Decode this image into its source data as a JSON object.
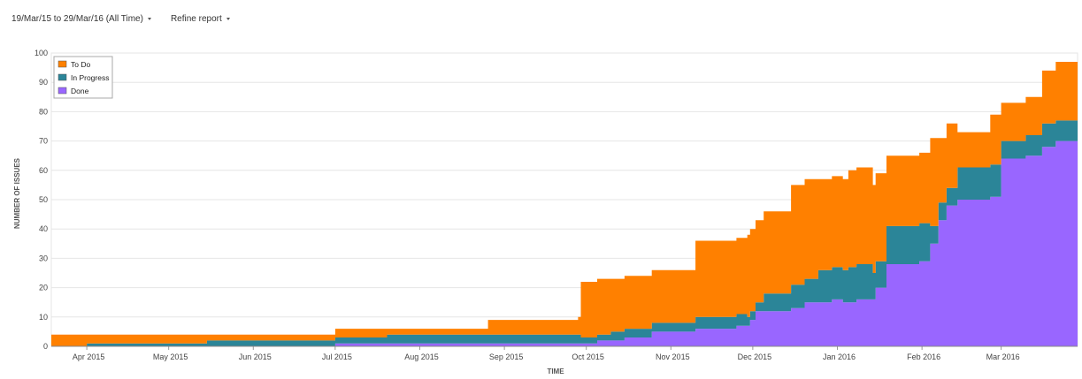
{
  "toolbar": {
    "date_range_label": "19/Mar/15 to 29/Mar/16 (All Time)",
    "refine_label": "Refine report"
  },
  "chart_data": {
    "type": "area",
    "stacked": true,
    "xlabel": "TIME",
    "ylabel": "NUMBER OF ISSUES",
    "x_ticks": [
      "Apr 2015",
      "May 2015",
      "Jun 2015",
      "Jul 2015",
      "Aug 2015",
      "Sep 2015",
      "Oct 2015",
      "Nov 2015",
      "Dec 2015",
      "Jan 2016",
      "Feb 2016",
      "Mar 2016"
    ],
    "y_ticks": [
      0,
      10,
      20,
      30,
      40,
      50,
      60,
      70,
      80,
      90,
      100
    ],
    "xlim": [
      "2015-03-19",
      "2016-03-29"
    ],
    "ylim": [
      0,
      100
    ],
    "grid": "horizontal",
    "legend_position": "top-left",
    "series": [
      {
        "name": "Done",
        "color": "#9966ff",
        "points": [
          [
            "2015-03-19",
            0
          ],
          [
            "2015-07-01",
            1
          ],
          [
            "2015-09-29",
            1
          ],
          [
            "2015-10-05",
            2
          ],
          [
            "2015-10-15",
            3
          ],
          [
            "2015-10-25",
            5
          ],
          [
            "2015-11-10",
            6
          ],
          [
            "2015-11-25",
            7
          ],
          [
            "2015-11-30",
            9
          ],
          [
            "2015-12-02",
            12
          ],
          [
            "2015-12-15",
            13
          ],
          [
            "2015-12-20",
            15
          ],
          [
            "2015-12-30",
            16
          ],
          [
            "2016-01-03",
            15
          ],
          [
            "2016-01-08",
            16
          ],
          [
            "2016-01-15",
            20
          ],
          [
            "2016-01-19",
            28
          ],
          [
            "2016-01-31",
            29
          ],
          [
            "2016-02-04",
            35
          ],
          [
            "2016-02-07",
            43
          ],
          [
            "2016-02-10",
            48
          ],
          [
            "2016-02-14",
            50
          ],
          [
            "2016-02-26",
            51
          ],
          [
            "2016-03-01",
            64
          ],
          [
            "2016-03-10",
            65
          ],
          [
            "2016-03-16",
            68
          ],
          [
            "2016-03-21",
            70
          ],
          [
            "2016-03-29",
            70
          ]
        ]
      },
      {
        "name": "In Progress",
        "color": "#2b8598",
        "points": [
          [
            "2015-03-19",
            0
          ],
          [
            "2015-04-01",
            1
          ],
          [
            "2015-05-15",
            2
          ],
          [
            "2015-06-15",
            2
          ],
          [
            "2015-07-20",
            3
          ],
          [
            "2015-08-26",
            3
          ],
          [
            "2015-09-29",
            2
          ],
          [
            "2015-10-10",
            3
          ],
          [
            "2015-10-25",
            3
          ],
          [
            "2015-11-10",
            4
          ],
          [
            "2015-11-29",
            3
          ],
          [
            "2015-12-05",
            6
          ],
          [
            "2015-12-15",
            8
          ],
          [
            "2015-12-25",
            11
          ],
          [
            "2016-01-05",
            12
          ],
          [
            "2016-01-14",
            9
          ],
          [
            "2016-01-19",
            13
          ],
          [
            "2016-02-04",
            6
          ],
          [
            "2016-02-07",
            6
          ],
          [
            "2016-02-14",
            11
          ],
          [
            "2016-02-24",
            11
          ],
          [
            "2016-03-01",
            6
          ],
          [
            "2016-03-10",
            7
          ],
          [
            "2016-03-16",
            8
          ],
          [
            "2016-03-21",
            7
          ],
          [
            "2016-03-29",
            7
          ]
        ]
      },
      {
        "name": "To Do",
        "color": "#ff8000",
        "points": [
          [
            "2015-03-19",
            4
          ],
          [
            "2015-04-01",
            3
          ],
          [
            "2015-05-15",
            2
          ],
          [
            "2015-06-15",
            2
          ],
          [
            "2015-07-01",
            3
          ],
          [
            "2015-07-20",
            2
          ],
          [
            "2015-08-26",
            5
          ],
          [
            "2015-09-28",
            6
          ],
          [
            "2015-09-29",
            19
          ],
          [
            "2015-10-10",
            18
          ],
          [
            "2015-10-25",
            18
          ],
          [
            "2015-11-10",
            26
          ],
          [
            "2015-11-29",
            28
          ],
          [
            "2015-12-05",
            28
          ],
          [
            "2015-12-15",
            34
          ],
          [
            "2015-12-25",
            31
          ],
          [
            "2016-01-05",
            33
          ],
          [
            "2016-01-14",
            30
          ],
          [
            "2016-01-19",
            24
          ],
          [
            "2016-02-04",
            30
          ],
          [
            "2016-02-07",
            22
          ],
          [
            "2016-02-14",
            12
          ],
          [
            "2016-02-26",
            17
          ],
          [
            "2016-03-01",
            13
          ],
          [
            "2016-03-10",
            13
          ],
          [
            "2016-03-16",
            18
          ],
          [
            "2016-03-21",
            20
          ],
          [
            "2016-03-29",
            20
          ]
        ]
      }
    ]
  }
}
